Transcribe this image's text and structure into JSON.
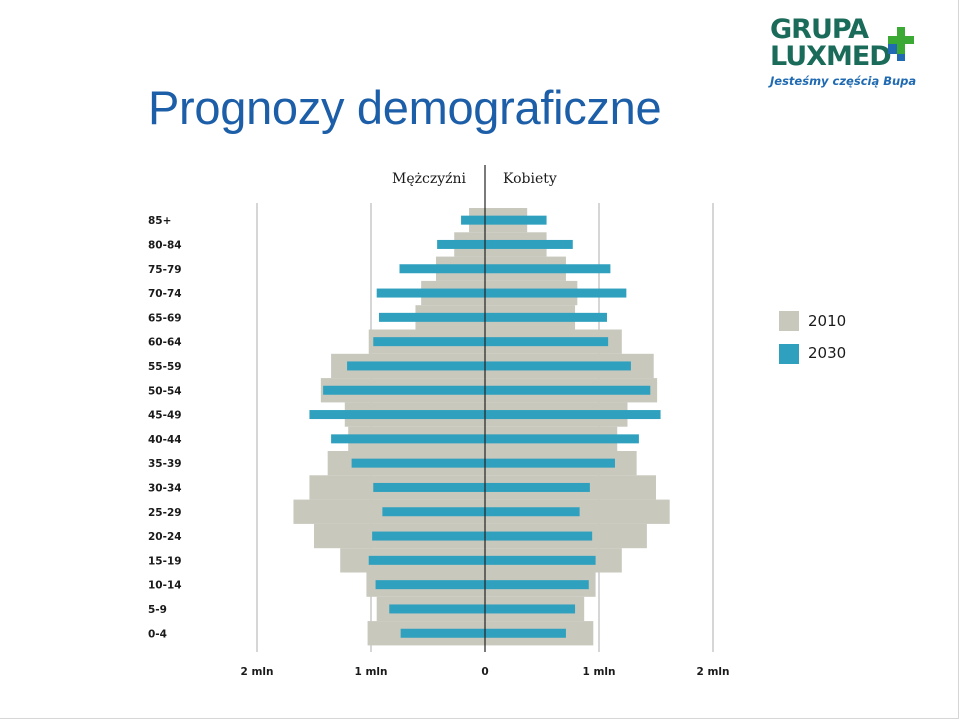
{
  "header": {
    "title": "Prognozy demograficzne"
  },
  "logo": {
    "line1": "GRUPA",
    "line2": "LUXMED",
    "tagline": "Jesteśmy częścią Bupa",
    "colors": {
      "text": "#1a6b5a",
      "cross_green": "#3aaa35",
      "cross_blue": "#1f6ab2",
      "tagline": "#1f6ab2"
    }
  },
  "chart_data": {
    "type": "bar",
    "orientation": "horizontal-population-pyramid",
    "left_label": "Mężczyźni",
    "right_label": "Kobiety",
    "categories": [
      "85+",
      "80-84",
      "75-79",
      "70-74",
      "65-69",
      "60-64",
      "55-59",
      "50-54",
      "45-49",
      "40-44",
      "35-39",
      "30-34",
      "25-29",
      "20-24",
      "15-19",
      "10-14",
      "5-9",
      "0-4"
    ],
    "series": [
      {
        "name": "2010",
        "color": "#c8c8bd",
        "men": [
          0.14,
          0.27,
          0.43,
          0.56,
          0.61,
          1.02,
          1.35,
          1.44,
          1.23,
          1.2,
          1.38,
          1.54,
          1.68,
          1.5,
          1.27,
          1.04,
          0.95,
          1.03
        ],
        "women": [
          0.37,
          0.54,
          0.71,
          0.81,
          0.79,
          1.2,
          1.48,
          1.51,
          1.25,
          1.16,
          1.33,
          1.5,
          1.62,
          1.42,
          1.2,
          0.97,
          0.87,
          0.95
        ]
      },
      {
        "name": "2030",
        "color": "#2fa1bf",
        "men": [
          0.21,
          0.42,
          0.75,
          0.95,
          0.93,
          0.98,
          1.21,
          1.42,
          1.54,
          1.35,
          1.17,
          0.98,
          0.9,
          0.99,
          1.02,
          0.96,
          0.84,
          0.74
        ],
        "women": [
          0.54,
          0.77,
          1.1,
          1.24,
          1.07,
          1.08,
          1.28,
          1.45,
          1.54,
          1.35,
          1.14,
          0.92,
          0.83,
          0.94,
          0.97,
          0.91,
          0.79,
          0.71
        ]
      }
    ],
    "x_ticks": [
      {
        "value": -2,
        "label": "2 mln"
      },
      {
        "value": -1,
        "label": "1 mln"
      },
      {
        "value": 0,
        "label": "0"
      },
      {
        "value": 1,
        "label": "1 mln"
      },
      {
        "value": 2,
        "label": "2 mln"
      }
    ],
    "xlim": [
      -2,
      2
    ],
    "unit": "mln",
    "grid": true,
    "legend_position": "right"
  }
}
